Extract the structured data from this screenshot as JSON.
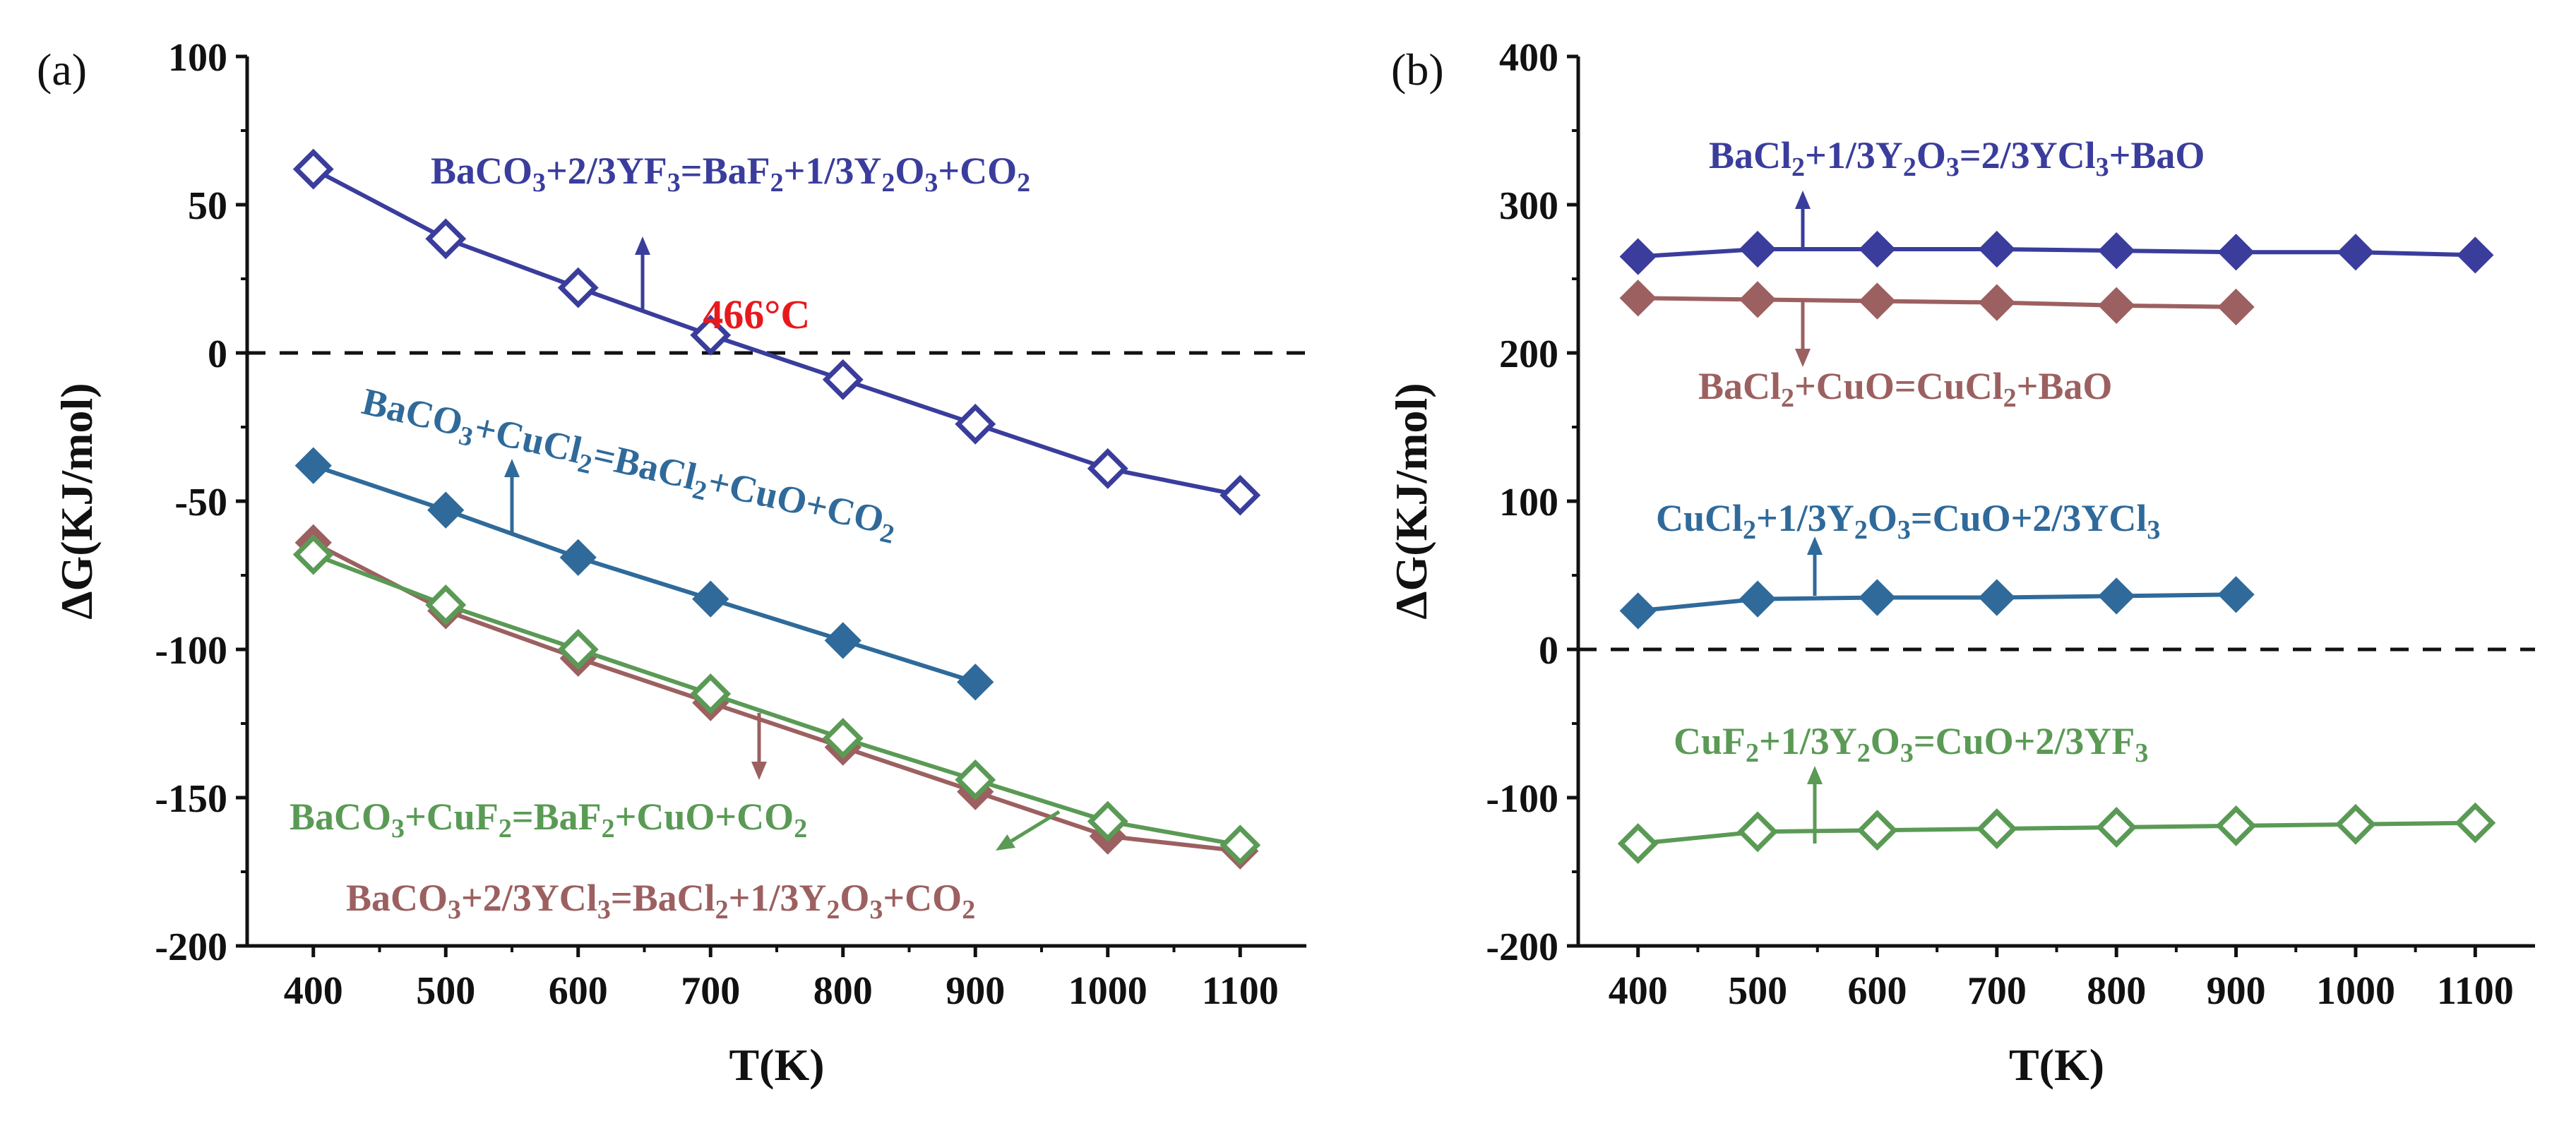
{
  "chart_data": [
    {
      "panel_label": "(a)",
      "type": "line",
      "xlabel": "T(K)",
      "ylabel": "ΔG(KJ/mol)",
      "xlim": [
        350,
        1150
      ],
      "ylim": [
        -200,
        100
      ],
      "xticks": [
        400,
        500,
        600,
        700,
        800,
        900,
        1000,
        1100
      ],
      "yticks": [
        -200,
        -150,
        -100,
        -50,
        0,
        50,
        100
      ],
      "zero_line": true,
      "series": [
        {
          "name": "BaCO3+2/3YF3=BaF2+1/3Y2O3+CO2",
          "color": "#3a3d9c",
          "marker": "diamond-open",
          "x": [
            400,
            500,
            600,
            700,
            800,
            900,
            1000,
            1100
          ],
          "y": [
            62,
            38.5,
            22,
            6,
            -9,
            -24,
            -39,
            -48
          ]
        },
        {
          "name": "BaCO3+CuCl2=BaCl2+CuO+CO2",
          "color": "#2f6a9a",
          "marker": "diamond-filled",
          "x": [
            400,
            500,
            600,
            700,
            800,
            900
          ],
          "y": [
            -38,
            -53,
            -69,
            -83,
            -97,
            -111
          ]
        },
        {
          "name": "BaCO3+2/3YCl3=BaCl2+1/3Y2O3+CO2",
          "color": "#9c6060",
          "marker": "diamond-filled",
          "x": [
            400,
            500,
            600,
            700,
            800,
            900,
            1000,
            1100
          ],
          "y": [
            -64,
            -87,
            -103,
            -118,
            -133,
            -148,
            -163,
            -168
          ]
        },
        {
          "name": "BaCO3+CuF2=BaF2+CuO+CO2",
          "color": "#5a9a55",
          "marker": "diamond-open",
          "x": [
            400,
            500,
            600,
            700,
            800,
            900,
            1000,
            1100
          ],
          "y": [
            -68,
            -85,
            -100,
            -115,
            -130,
            -144,
            -158,
            -166
          ]
        }
      ],
      "annotations": [
        {
          "parts": [
            [
              "BaCO",
              ""
            ],
            [
              "3",
              "sub"
            ],
            [
              "+2/3YF",
              ""
            ],
            [
              "3",
              "sub"
            ],
            [
              "=BaF",
              ""
            ],
            [
              "2",
              "sub"
            ],
            [
              "+1/3Y",
              ""
            ],
            [
              "2",
              "sub"
            ],
            [
              "O",
              ""
            ],
            [
              "3",
              "sub"
            ],
            [
              "+CO",
              ""
            ],
            [
              "2",
              "sub"
            ]
          ],
          "color": "#3a3d9c"
        },
        {
          "parts": [
            [
              "BaCO",
              ""
            ],
            [
              "3",
              "sub"
            ],
            [
              "+CuCl",
              ""
            ],
            [
              "2",
              "sub"
            ],
            [
              "=BaCl",
              ""
            ],
            [
              "2",
              "sub"
            ],
            [
              "+CuO+CO",
              ""
            ],
            [
              "2",
              "sub"
            ]
          ],
          "color": "#2f6a9a"
        },
        {
          "parts": [
            [
              "BaCO",
              ""
            ],
            [
              "3",
              "sub"
            ],
            [
              "+CuF",
              ""
            ],
            [
              "2",
              "sub"
            ],
            [
              "=BaF",
              ""
            ],
            [
              "2",
              "sub"
            ],
            [
              "+CuO+CO",
              ""
            ],
            [
              "2",
              "sub"
            ]
          ],
          "color": "#5a9a55"
        },
        {
          "parts": [
            [
              "BaCO",
              ""
            ],
            [
              "3",
              "sub"
            ],
            [
              "+2/3YCl",
              ""
            ],
            [
              "3",
              "sub"
            ],
            [
              "=BaCl",
              ""
            ],
            [
              "2",
              "sub"
            ],
            [
              "+1/3Y",
              ""
            ],
            [
              "2",
              "sub"
            ],
            [
              "O",
              ""
            ],
            [
              "3",
              "sub"
            ],
            [
              "+CO",
              ""
            ],
            [
              "2",
              "sub"
            ]
          ],
          "color": "#9c6060"
        }
      ],
      "crossing_label": {
        "text": "466°C",
        "color": "#e8191d",
        "x": 740,
        "y": 0
      }
    },
    {
      "panel_label": "(b)",
      "type": "line",
      "xlabel": "T(K)",
      "ylabel": "ΔG(KJ/mol)",
      "xlim": [
        350,
        1150
      ],
      "ylim": [
        -200,
        400
      ],
      "xticks": [
        400,
        500,
        600,
        700,
        800,
        900,
        1000,
        1100
      ],
      "yticks": [
        -200,
        -100,
        0,
        100,
        200,
        300,
        400
      ],
      "zero_line": true,
      "series": [
        {
          "name": "BaCl2+1/3Y2O3=2/3YCl3+BaO",
          "color": "#3a3d9c",
          "marker": "diamond-filled",
          "x": [
            400,
            500,
            600,
            700,
            800,
            900,
            1000,
            1100
          ],
          "y": [
            265,
            270,
            270,
            270,
            269,
            268,
            268,
            266
          ]
        },
        {
          "name": "BaCl2+CuO=CuCl2+BaO",
          "color": "#9c6060",
          "marker": "diamond-filled",
          "x": [
            400,
            500,
            600,
            700,
            800,
            900
          ],
          "y": [
            237,
            236,
            235,
            234,
            232,
            231
          ]
        },
        {
          "name": "CuCl2+1/3Y2O3=CuO+2/3YCl3",
          "color": "#2f6a9a",
          "marker": "diamond-filled",
          "x": [
            400,
            500,
            600,
            700,
            800,
            900
          ],
          "y": [
            26,
            34,
            35,
            35,
            36,
            37
          ]
        },
        {
          "name": "CuF2+1/3Y2O3=CuO+2/3YF3",
          "color": "#5a9a55",
          "marker": "diamond-open",
          "x": [
            400,
            500,
            600,
            700,
            800,
            900,
            1000,
            1100
          ],
          "y": [
            -131,
            -123,
            -122,
            -121,
            -120,
            -119,
            -118,
            -117
          ]
        }
      ],
      "annotations": [
        {
          "parts": [
            [
              "BaCl",
              ""
            ],
            [
              "2",
              "sub"
            ],
            [
              "+1/3Y",
              ""
            ],
            [
              "2",
              "sub"
            ],
            [
              "O",
              ""
            ],
            [
              "3",
              "sub"
            ],
            [
              "=2/3YCl",
              ""
            ],
            [
              "3",
              "sub"
            ],
            [
              "+BaO",
              ""
            ]
          ],
          "color": "#3a3d9c"
        },
        {
          "parts": [
            [
              "BaCl",
              ""
            ],
            [
              "2",
              "sub"
            ],
            [
              "+CuO=CuCl",
              ""
            ],
            [
              "2",
              "sub"
            ],
            [
              "+BaO",
              ""
            ]
          ],
          "color": "#9c6060"
        },
        {
          "parts": [
            [
              "CuCl",
              ""
            ],
            [
              "2",
              "sub"
            ],
            [
              "+1/3Y",
              ""
            ],
            [
              "2",
              "sub"
            ],
            [
              "O",
              ""
            ],
            [
              "3",
              "sub"
            ],
            [
              "=CuO+2/3YCl",
              ""
            ],
            [
              "3",
              "sub"
            ]
          ],
          "color": "#2f6a9a"
        },
        {
          "parts": [
            [
              "CuF",
              ""
            ],
            [
              "2",
              "sub"
            ],
            [
              "+1/3Y",
              ""
            ],
            [
              "2",
              "sub"
            ],
            [
              "O",
              ""
            ],
            [
              "3",
              "sub"
            ],
            [
              "=CuO+2/3YF",
              ""
            ],
            [
              "3",
              "sub"
            ]
          ],
          "color": "#5a9a55"
        }
      ]
    }
  ]
}
